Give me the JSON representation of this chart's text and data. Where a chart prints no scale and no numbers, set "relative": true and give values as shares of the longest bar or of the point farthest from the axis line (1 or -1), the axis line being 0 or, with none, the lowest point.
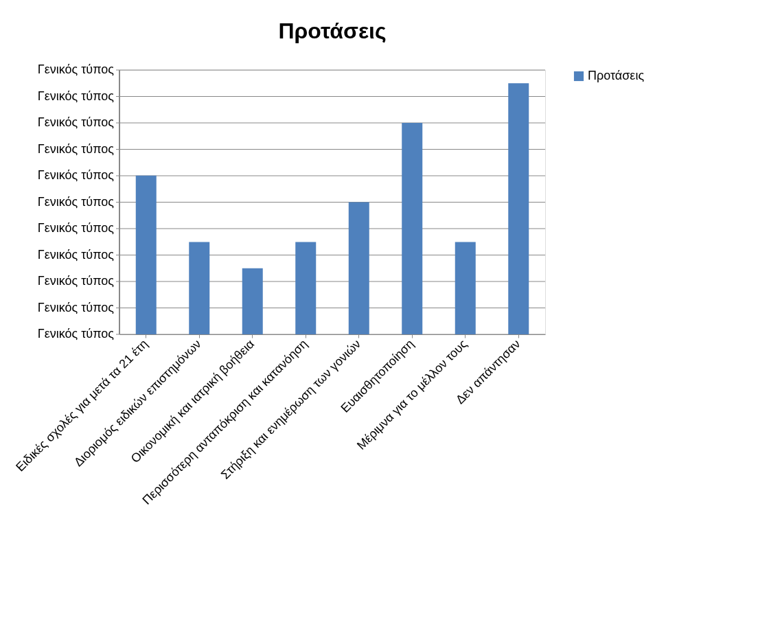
{
  "chart_data": {
    "type": "bar",
    "title": "Προτάσεις",
    "relative": true,
    "categories": [
      "Ειδικές σχολές για μετά τα 21 έτη",
      "Διοριομός ειδικών επιστημόνων",
      "Οικονομική και ιατρική βοήθεια",
      "Περισσότερη ανταπόκριση και κατανόηση",
      "Στήριξη και ενημέρωση των γονιών",
      "Ευαισθητοποίηση",
      "Μέριμνα για το μέλλον τους",
      "Δεν απάντησαν"
    ],
    "series": [
      {
        "name": "Προτάσεις",
        "color": "#4f81bd",
        "values": [
          0.632,
          0.368,
          0.263,
          0.368,
          0.526,
          0.842,
          0.368,
          1
        ]
      }
    ],
    "annotations": [
      "Γενικός τύπος",
      "Γενικός τύπος",
      "Γενικός τύπος",
      "Γενικός τύπος",
      "Γενικός τύπος",
      "Γενικός τύπος",
      "Γενικός τύπος",
      "Γενικός τύπος",
      "Γενικός τύπος",
      "Γενικός τύπος",
      "Γενικός τύπος"
    ],
    "grid": "y",
    "legend": "right"
  }
}
